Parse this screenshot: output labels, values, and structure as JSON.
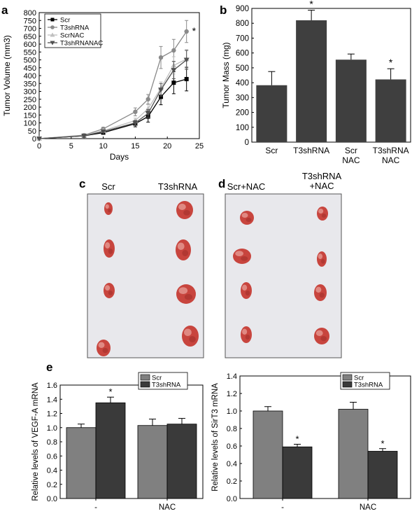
{
  "colors": {
    "frame": "#000000",
    "scr_bar": "#808080",
    "t3_bar": "#3a3a3a",
    "mass_bar": "#3f3f3f",
    "scr_line": "#000000",
    "t3_line": "#8a8a8a",
    "scrnac_line": "#c0c0c0",
    "t3nac_line": "#505050",
    "photo_bg": "#e6e6ea",
    "tumor": "#c8453e"
  },
  "panels": {
    "a": {
      "label": "a"
    },
    "b": {
      "label": "b"
    },
    "c": {
      "label": "c",
      "col_labels": [
        "Scr",
        "T3shRNA"
      ]
    },
    "d": {
      "label": "d",
      "col_labels": [
        "Scr+NAC",
        "T3shRNA\n+NAC"
      ]
    },
    "e": {
      "label": "e"
    }
  },
  "chart_data": [
    {
      "id": "a",
      "type": "line",
      "xlabel": "Days",
      "ylabel": "Tumor Volume (mm3)",
      "xlim": [
        0,
        25
      ],
      "ylim": [
        0,
        800
      ],
      "xticks": [
        0,
        5,
        10,
        15,
        20,
        25
      ],
      "yticks": [
        0,
        50,
        100,
        150,
        200,
        250,
        300,
        350,
        400,
        450,
        500,
        550,
        600,
        650,
        700,
        750,
        800
      ],
      "x": [
        0,
        7,
        10,
        15,
        17,
        19,
        21,
        23
      ],
      "legend_position": "top-left",
      "series": [
        {
          "name": "Scr",
          "marker": "square",
          "values": [
            0,
            18,
            38,
            95,
            140,
            265,
            355,
            378
          ],
          "errors": [
            0,
            5,
            8,
            20,
            35,
            50,
            70,
            75
          ]
        },
        {
          "name": "T3shRNA",
          "marker": "circle",
          "values": [
            0,
            22,
            62,
            170,
            250,
            515,
            560,
            680
          ],
          "errors": [
            0,
            5,
            10,
            25,
            30,
            70,
            70,
            70
          ]
        },
        {
          "name": "ScrNAC",
          "marker": "triangle-up",
          "values": [
            0,
            20,
            50,
            115,
            190,
            320,
            465,
            505
          ],
          "errors": [
            0,
            5,
            8,
            15,
            25,
            40,
            55,
            60
          ]
        },
        {
          "name": "T3shRNANAC",
          "marker": "triangle-down",
          "values": [
            0,
            18,
            45,
            100,
            160,
            310,
            435,
            500
          ],
          "errors": [
            0,
            5,
            8,
            15,
            25,
            40,
            55,
            60
          ]
        }
      ],
      "annotations": [
        {
          "text": "*",
          "x": 23,
          "y": 680
        }
      ]
    },
    {
      "id": "b",
      "type": "bar",
      "ylabel": "Tumor Mass (mg)",
      "ylim": [
        0,
        900
      ],
      "yticks": [
        0,
        100,
        200,
        300,
        400,
        500,
        600,
        700,
        800,
        900
      ],
      "categories": [
        "Scr",
        "T3shRNA",
        "Scr\nNAC",
        "T3shRNA\nNAC"
      ],
      "values": [
        383,
        820,
        555,
        422
      ],
      "errors": [
        92,
        68,
        38,
        72
      ],
      "significance": [
        "",
        "*",
        "",
        "*"
      ]
    },
    {
      "id": "e1",
      "type": "bar",
      "ylabel": "Relative levels of VEGF-A mRNA",
      "ylim": [
        0,
        1.6
      ],
      "yticks": [
        "0.0",
        "0.2",
        "0.4",
        "0.6",
        "0.8",
        "1.0",
        "1.2",
        "1.4",
        "1.6"
      ],
      "categories": [
        "-",
        "NAC"
      ],
      "series": [
        {
          "name": "Scr",
          "values": [
            1.0,
            1.03
          ],
          "errors": [
            0.05,
            0.09
          ],
          "significance": [
            "",
            ""
          ]
        },
        {
          "name": "T3shRNA",
          "values": [
            1.35,
            1.05
          ],
          "errors": [
            0.08,
            0.08
          ],
          "significance": [
            "*",
            ""
          ]
        }
      ],
      "legend_position": "top-right"
    },
    {
      "id": "e2",
      "type": "bar",
      "ylabel": "Relative levels of SirT3 mRNA",
      "ylim": [
        0,
        1.4
      ],
      "yticks": [
        "0.0",
        "0.2",
        "0.4",
        "0.6",
        "0.8",
        "1.0",
        "1.2",
        "1.4"
      ],
      "categories": [
        "-",
        "NAC"
      ],
      "series": [
        {
          "name": "Scr",
          "values": [
            1.0,
            1.02
          ],
          "errors": [
            0.05,
            0.08
          ],
          "significance": [
            "",
            ""
          ]
        },
        {
          "name": "T3shRNA",
          "values": [
            0.59,
            0.54
          ],
          "errors": [
            0.03,
            0.03
          ],
          "significance": [
            "*",
            "*"
          ]
        }
      ],
      "legend_position": "top-right"
    }
  ]
}
